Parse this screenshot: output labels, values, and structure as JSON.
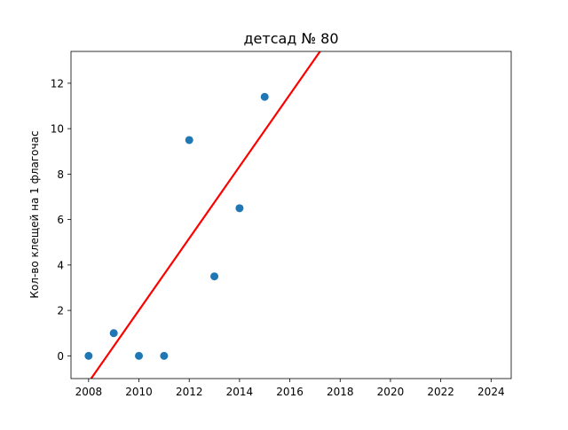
{
  "chart_data": {
    "type": "scatter",
    "title": "детсад № 80",
    "xlabel": "",
    "ylabel": "Кол-во клещей на 1 флагочас",
    "xlim": [
      2007.3,
      2024.8
    ],
    "ylim": [
      -1.0,
      13.4
    ],
    "xticks": [
      2008,
      2010,
      2012,
      2014,
      2016,
      2018,
      2020,
      2022,
      2024
    ],
    "yticks": [
      0,
      2,
      4,
      6,
      8,
      10,
      12
    ],
    "grid": false,
    "legend": "none",
    "series": [
      {
        "type": "scatter",
        "color": "#1f77b4",
        "points": [
          {
            "x": 2008,
            "y": 0
          },
          {
            "x": 2009,
            "y": 1
          },
          {
            "x": 2010,
            "y": 0
          },
          {
            "x": 2011,
            "y": 0
          },
          {
            "x": 2012,
            "y": 9.5
          },
          {
            "x": 2013,
            "y": 3.5
          },
          {
            "x": 2014,
            "y": 6.5
          },
          {
            "x": 2015,
            "y": 11.4
          }
        ]
      },
      {
        "type": "line",
        "color": "#ff0000",
        "points": [
          {
            "x": 2008.1,
            "y": -1.0
          },
          {
            "x": 2017.2,
            "y": 13.4
          }
        ]
      }
    ]
  }
}
